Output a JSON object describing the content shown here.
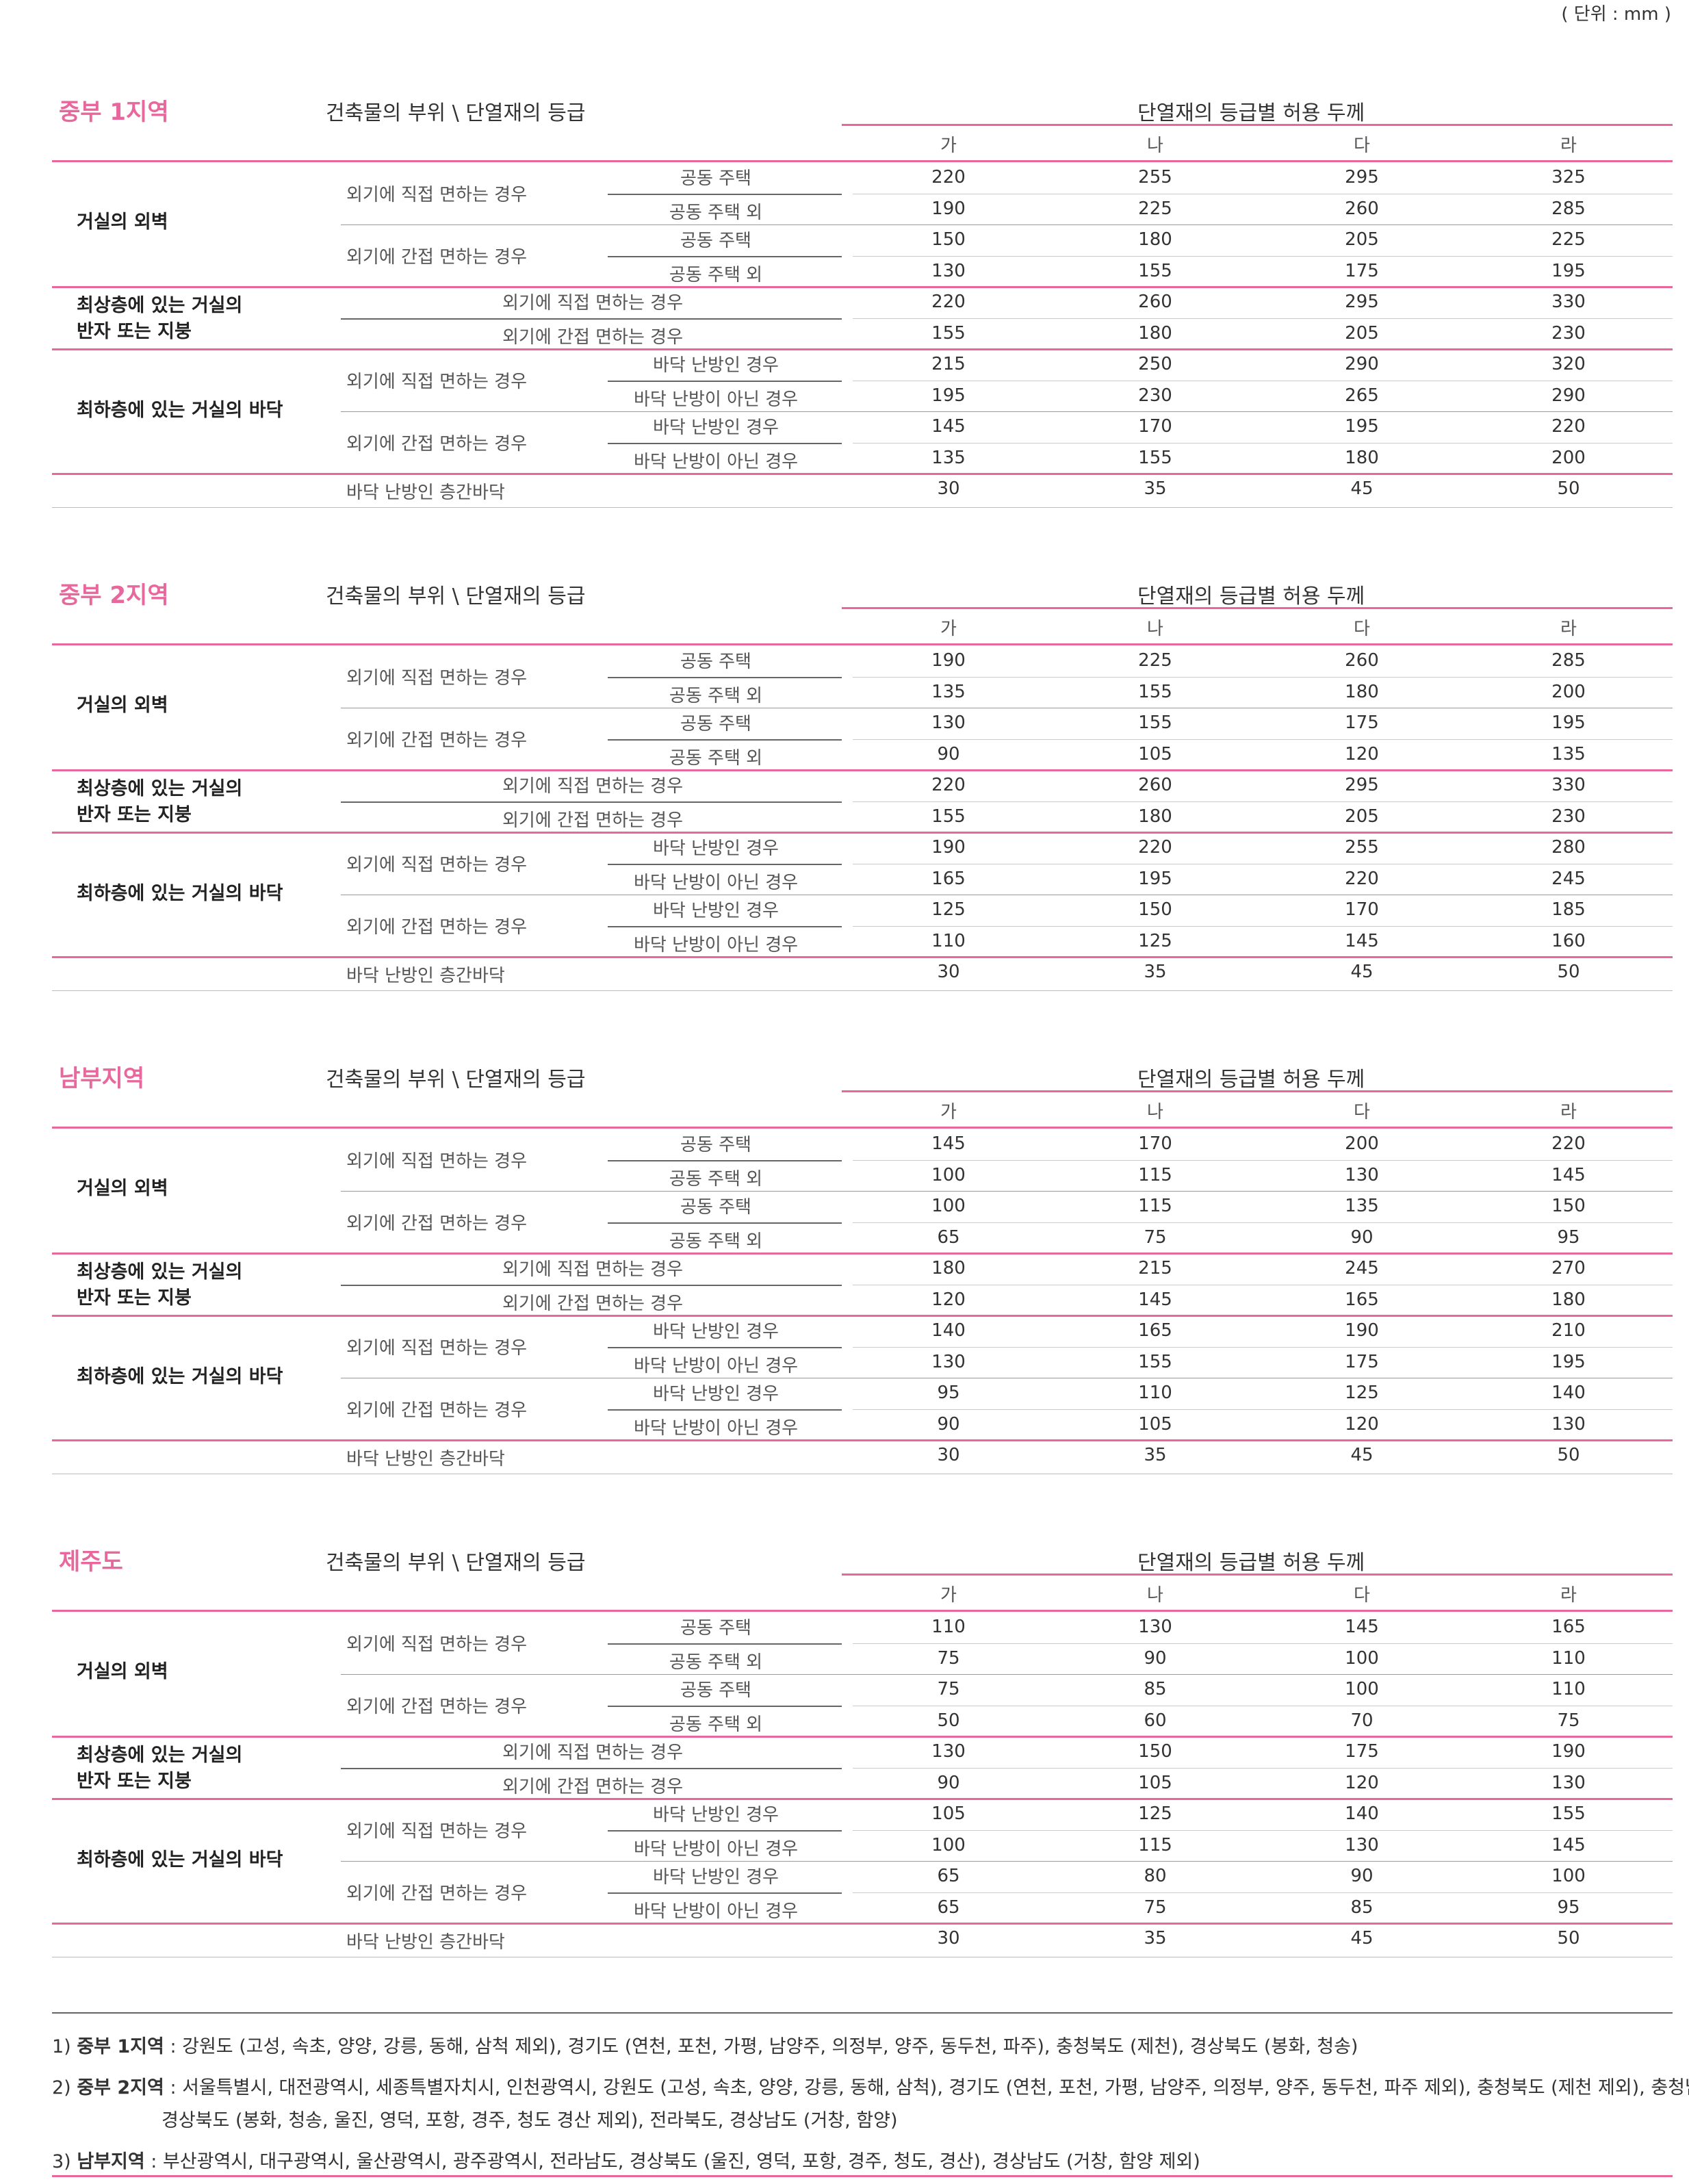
{
  "unit_label": "( 단위 : mm )",
  "header_left": "건축물의 부위  \\  단열재의 등급",
  "header_right": "단열재의 등급별 허용 두께",
  "grades": [
    "가",
    "나",
    "다",
    "라"
  ],
  "part_labels": {
    "wall": "거실의 외벽",
    "roof_line1": "최상층에 있는 거실의",
    "roof_line2": "반자 또는 지붕",
    "floor": "최하층에 있는 거실의 바닥"
  },
  "condition_labels": {
    "direct": "외기에 직접 면하는 경우",
    "indirect": "외기에 간접 면하는 경우",
    "apartment": "공동 주택",
    "non_apartment": "공동 주택 외",
    "floor_heated": "바닥 난방인 경우",
    "floor_not_heated": "바닥 난방이 아닌 경우",
    "interfloor": "바닥 난방인 층간바닥"
  },
  "regions": [
    {
      "name": "중부 1지역",
      "rows": [
        [
          "220",
          "255",
          "295",
          "325"
        ],
        [
          "190",
          "225",
          "260",
          "285"
        ],
        [
          "150",
          "180",
          "205",
          "225"
        ],
        [
          "130",
          "155",
          "175",
          "195"
        ],
        [
          "220",
          "260",
          "295",
          "330"
        ],
        [
          "155",
          "180",
          "205",
          "230"
        ],
        [
          "215",
          "250",
          "290",
          "320"
        ],
        [
          "195",
          "230",
          "265",
          "290"
        ],
        [
          "145",
          "170",
          "195",
          "220"
        ],
        [
          "135",
          "155",
          "180",
          "200"
        ],
        [
          "30",
          "35",
          "45",
          "50"
        ]
      ]
    },
    {
      "name": "중부 2지역",
      "rows": [
        [
          "190",
          "225",
          "260",
          "285"
        ],
        [
          "135",
          "155",
          "180",
          "200"
        ],
        [
          "130",
          "155",
          "175",
          "195"
        ],
        [
          "90",
          "105",
          "120",
          "135"
        ],
        [
          "220",
          "260",
          "295",
          "330"
        ],
        [
          "155",
          "180",
          "205",
          "230"
        ],
        [
          "190",
          "220",
          "255",
          "280"
        ],
        [
          "165",
          "195",
          "220",
          "245"
        ],
        [
          "125",
          "150",
          "170",
          "185"
        ],
        [
          "110",
          "125",
          "145",
          "160"
        ],
        [
          "30",
          "35",
          "45",
          "50"
        ]
      ]
    },
    {
      "name": "남부지역",
      "rows": [
        [
          "145",
          "170",
          "200",
          "220"
        ],
        [
          "100",
          "115",
          "130",
          "145"
        ],
        [
          "100",
          "115",
          "135",
          "150"
        ],
        [
          "65",
          "75",
          "90",
          "95"
        ],
        [
          "180",
          "215",
          "245",
          "270"
        ],
        [
          "120",
          "145",
          "165",
          "180"
        ],
        [
          "140",
          "165",
          "190",
          "210"
        ],
        [
          "130",
          "155",
          "175",
          "195"
        ],
        [
          "95",
          "110",
          "125",
          "140"
        ],
        [
          "90",
          "105",
          "120",
          "130"
        ],
        [
          "30",
          "35",
          "45",
          "50"
        ]
      ]
    },
    {
      "name": "제주도",
      "rows": [
        [
          "110",
          "130",
          "145",
          "165"
        ],
        [
          "75",
          "90",
          "100",
          "110"
        ],
        [
          "75",
          "85",
          "100",
          "110"
        ],
        [
          "50",
          "60",
          "70",
          "75"
        ],
        [
          "130",
          "150",
          "175",
          "190"
        ],
        [
          "90",
          "105",
          "120",
          "130"
        ],
        [
          "105",
          "125",
          "140",
          "155"
        ],
        [
          "100",
          "115",
          "130",
          "145"
        ],
        [
          "65",
          "80",
          "90",
          "100"
        ],
        [
          "65",
          "75",
          "85",
          "95"
        ],
        [
          "30",
          "35",
          "45",
          "50"
        ]
      ]
    }
  ],
  "notes": [
    {
      "num": "1)",
      "label": "중부 1지역",
      "text": " : 강원도 (고성, 속초, 양양, 강릉, 동해, 삼척 제외), 경기도 (연천, 포천, 가평, 남양주, 의정부, 양주, 동두천, 파주), 충청북도 (제천), 경상북도 (봉화, 청송)"
    },
    {
      "num": "2)",
      "label": "중부 2지역",
      "text": " : 서울특별시, 대전광역시, 세종특별자치시, 인천광역시, 강원도 (고성, 속초, 양양, 강릉, 동해, 삼척), 경기도 (연천, 포천, 가평, 남양주, 의정부, 양주, 동두천, 파주 제외), 충청북도 (제천 제외), 충청남도,"
    },
    {
      "num": "",
      "label": "",
      "text": "경상북도 (봉화, 청송, 울진, 영덕, 포항, 경주, 청도 경산 제외), 전라북도, 경상남도 (거창, 함양)"
    },
    {
      "num": "3)",
      "label": "남부지역",
      "text": " : 부산광역시, 대구광역시, 울산광역시, 광주광역시, 전라남도, 경상북도 (울진, 영덕, 포항, 경주, 청도, 경산), 경상남도 (거창, 함양 제외)"
    }
  ]
}
